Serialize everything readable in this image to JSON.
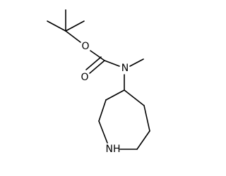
{
  "atoms": [
    {
      "label": "O"
    },
    {
      "label": "O"
    },
    {
      "label": "N"
    },
    {
      "label": "NH"
    }
  ]
}
